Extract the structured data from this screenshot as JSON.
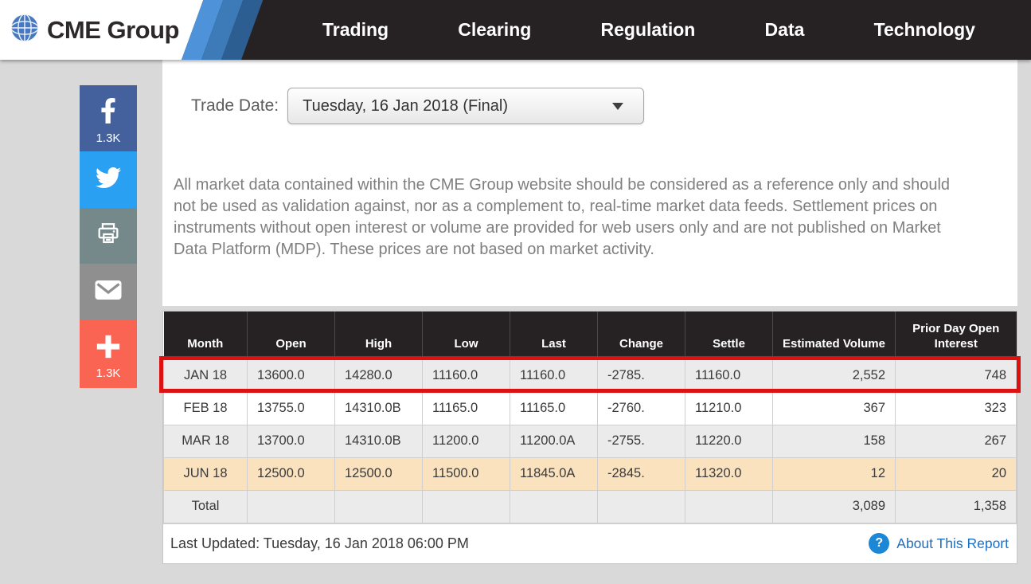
{
  "brand": {
    "name": "CME Group"
  },
  "nav": {
    "items": [
      "Trading",
      "Clearing",
      "Regulation",
      "Data",
      "Technology"
    ]
  },
  "share_toolbar": {
    "facebook_count": "1.3K",
    "plus_count": "1.3K",
    "buttons": [
      "facebook",
      "twitter",
      "print",
      "email",
      "share-plus"
    ]
  },
  "trade_date": {
    "label": "Trade Date:",
    "selected_option": "Tuesday, 16 Jan 2018 (Final)"
  },
  "disclaimer": "All market data contained within the CME Group website should be considered as a reference only and should not be used as validation against, nor as a complement to, real-time market data feeds. Settlement prices on instruments without open interest or volume are provided for web users only and are not published on Market Data Platform (MDP). These prices are not based on market activity.",
  "table": {
    "columns": [
      "Month",
      "Open",
      "High",
      "Low",
      "Last",
      "Change",
      "Settle",
      "Estimated Volume",
      "Prior Day Open Interest"
    ],
    "rows": [
      {
        "variant": "selected",
        "cells": [
          "JAN 18",
          "13600.0",
          "14280.0",
          "11160.0",
          "11160.0",
          "-2785.",
          "11160.0",
          "2,552",
          "748"
        ]
      },
      {
        "variant": "even",
        "cells": [
          "FEB 18",
          "13755.0",
          "14310.0B",
          "11165.0",
          "11165.0",
          "-2760.",
          "11210.0",
          "367",
          "323"
        ]
      },
      {
        "variant": "odd",
        "cells": [
          "MAR 18",
          "13700.0",
          "14310.0B",
          "11200.0",
          "11200.0A",
          "-2755.",
          "11220.0",
          "158",
          "267"
        ]
      },
      {
        "variant": "highlight",
        "cells": [
          "JUN 18",
          "12500.0",
          "12500.0",
          "11500.0",
          "11845.0A",
          "-2845.",
          "11320.0",
          "12",
          "20"
        ]
      },
      {
        "variant": "total",
        "cells": [
          "Total",
          "",
          "",
          "",
          "",
          "",
          "",
          "3,089",
          "1,358"
        ]
      }
    ]
  },
  "footer": {
    "last_updated": "Last Updated: Tuesday, 16 Jan 2018 06:00 PM",
    "about_link": "About This Report"
  },
  "colors": {
    "nav_bg": "#262223",
    "stripe_blues": [
      "#4e93d9",
      "#3c7ab8",
      "#2d5e92"
    ],
    "selected_row_frame_red": "#dc1212",
    "highlight_row_peach": "#fbe2bf",
    "row_gray": "#ebebeb",
    "facebook_blue": "#44619d",
    "twitter_blue": "#2aa0f2",
    "print_gray": "#75898a",
    "email_gray": "#8f8f8f",
    "share_plus_coral": "#fa6452",
    "link_blue": "#1b6fc4",
    "help_icon_blue": "#1b87d6"
  }
}
